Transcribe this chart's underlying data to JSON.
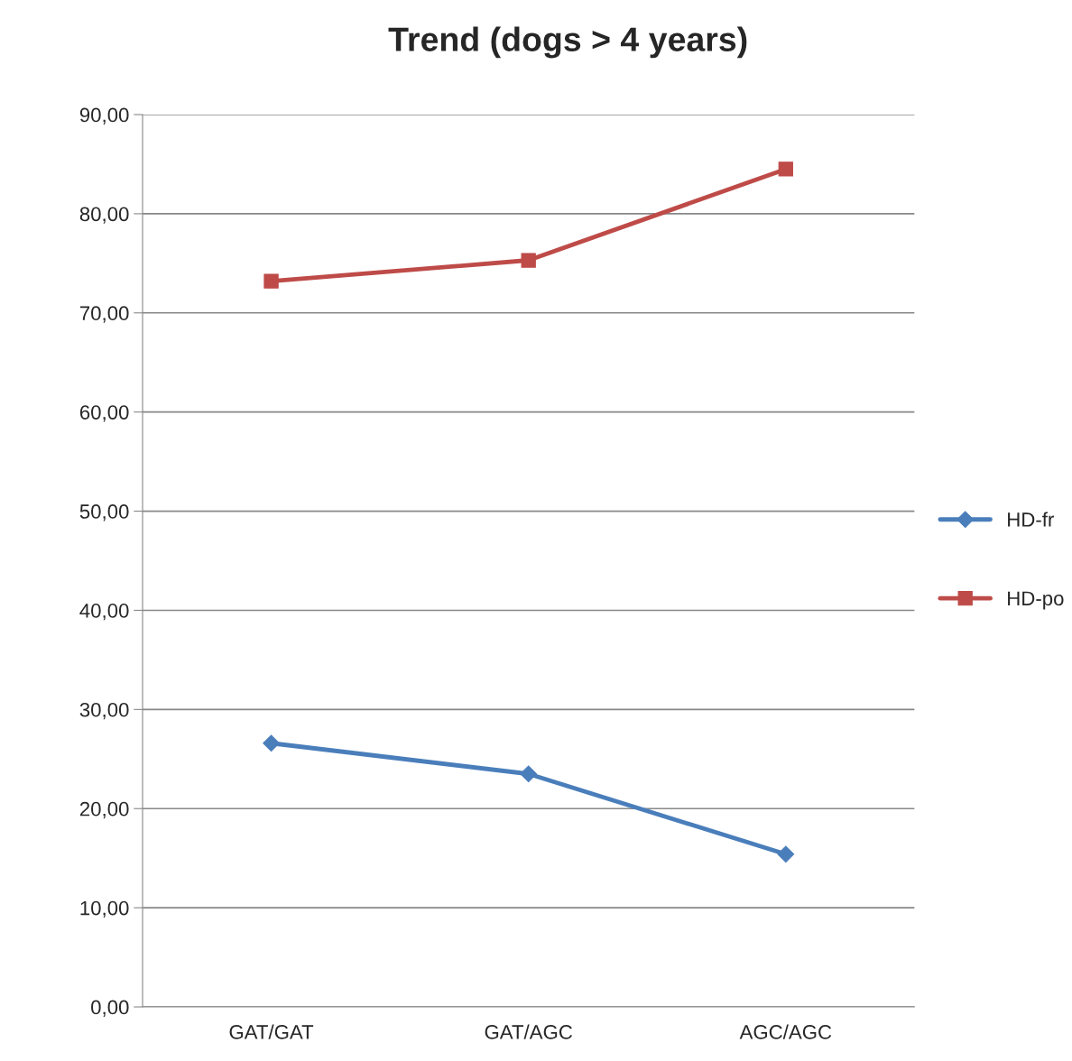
{
  "chart_data": {
    "type": "line",
    "title": "Trend (dogs > 4 years)",
    "categories": [
      "GAT/GAT",
      "GAT/AGC",
      "AGC/AGC"
    ],
    "series": [
      {
        "name": "HD-fr",
        "color": "#4a7ebb",
        "marker": "diamond",
        "values": [
          26.6,
          23.5,
          15.4
        ]
      },
      {
        "name": "HD-po",
        "color": "#be4b48",
        "marker": "square",
        "values": [
          73.2,
          75.3,
          84.5
        ]
      }
    ],
    "ylim": [
      0,
      90
    ],
    "yticks": [
      {
        "value": 0,
        "label": "0,00"
      },
      {
        "value": 10,
        "label": "10,00"
      },
      {
        "value": 20,
        "label": "20,00"
      },
      {
        "value": 30,
        "label": "30,00"
      },
      {
        "value": 40,
        "label": "40,00"
      },
      {
        "value": 50,
        "label": "50,00"
      },
      {
        "value": 60,
        "label": "60,00"
      },
      {
        "value": 70,
        "label": "70,00"
      },
      {
        "value": 80,
        "label": "80,00"
      },
      {
        "value": 90,
        "label": "90,00"
      }
    ],
    "grid": "y",
    "legend": "right"
  }
}
